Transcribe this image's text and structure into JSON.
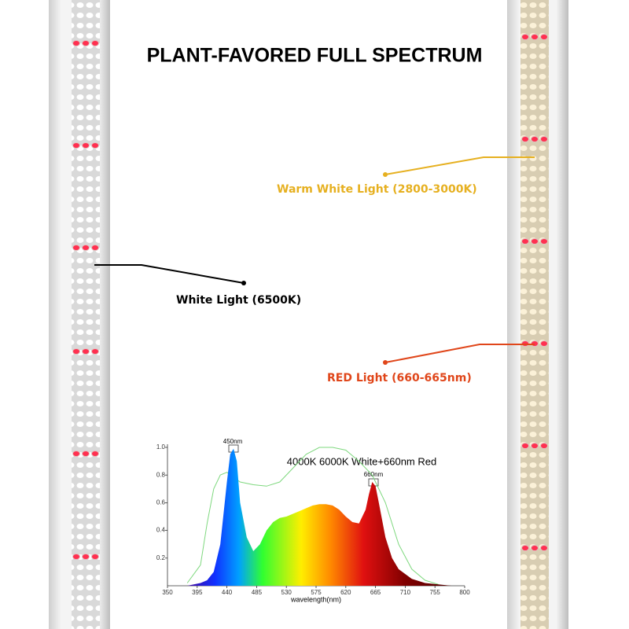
{
  "title": "PLANT-FAVORED FULL SPECTRUM",
  "callouts": {
    "warm": "Warm White Light (2800-3000K)",
    "white": "White Light (6500K)",
    "red": "RED Light (660-665nm)"
  },
  "chart_data": {
    "type": "area",
    "subtitle": "4000K 6000K White+660nm Red",
    "x_label": "wavelength(nm)",
    "annotations": [
      "450nm",
      "660nm"
    ],
    "xlim": [
      350,
      800
    ],
    "xticks": [
      350,
      395,
      440,
      485,
      530,
      575,
      620,
      665,
      710,
      755,
      800
    ],
    "ylim": [
      0,
      1
    ],
    "yticks": [
      0.2,
      0.4,
      0.6,
      0.8,
      {
        "value": 1,
        "label": "1.0"
      }
    ],
    "series": [
      {
        "color": "#7ed87e",
        "x": [
          380,
          400,
          410,
          420,
          430,
          440,
          460,
          480,
          500,
          520,
          540,
          560,
          580,
          600,
          620,
          640,
          660,
          680,
          700,
          720,
          740,
          760
        ],
        "values": [
          0.02,
          0.15,
          0.45,
          0.7,
          0.8,
          0.82,
          0.75,
          0.73,
          0.72,
          0.75,
          0.85,
          0.95,
          1.0,
          1.0,
          0.98,
          0.9,
          0.8,
          0.6,
          0.3,
          0.12,
          0.04,
          0.01
        ]
      },
      {
        "color": "spectrum",
        "x": [
          380,
          390,
          400,
          410,
          420,
          430,
          440,
          445,
          450,
          455,
          460,
          470,
          480,
          490,
          500,
          510,
          520,
          530,
          540,
          550,
          560,
          570,
          580,
          590,
          600,
          610,
          620,
          630,
          640,
          650,
          655,
          660,
          665,
          670,
          680,
          690,
          700,
          720,
          740,
          760,
          780
        ],
        "values": [
          0,
          0.01,
          0.02,
          0.04,
          0.1,
          0.3,
          0.75,
          0.95,
          0.99,
          0.9,
          0.6,
          0.35,
          0.25,
          0.3,
          0.4,
          0.46,
          0.49,
          0.5,
          0.52,
          0.54,
          0.56,
          0.58,
          0.59,
          0.59,
          0.58,
          0.55,
          0.5,
          0.46,
          0.45,
          0.55,
          0.66,
          0.75,
          0.72,
          0.6,
          0.35,
          0.2,
          0.12,
          0.05,
          0.02,
          0.01,
          0
        ]
      }
    ]
  }
}
